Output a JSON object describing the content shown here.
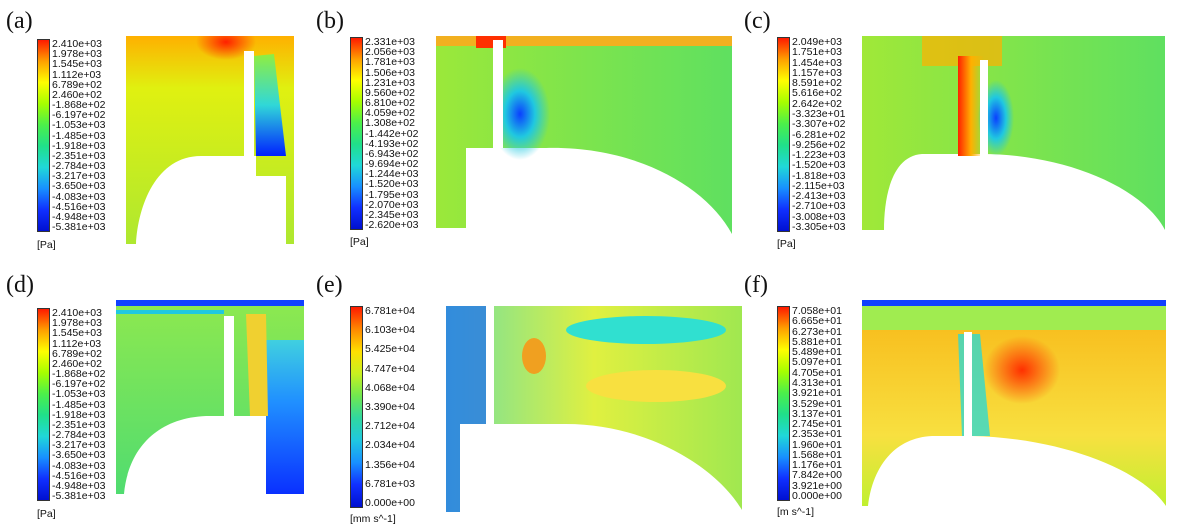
{
  "panels": [
    {
      "label": "(a)",
      "unit": "[Pa]",
      "ticks": [
        "2.410e+03",
        "1.978e+03",
        "1.545e+03",
        "1.112e+03",
        "6.789e+02",
        "2.460e+02",
        "-1.868e+02",
        "-6.197e+02",
        "-1.053e+03",
        "-1.485e+03",
        "-1.918e+03",
        "-2.351e+03",
        "-2.784e+03",
        "-3.217e+03",
        "-3.650e+03",
        "-4.083e+03",
        "-4.516e+03",
        "-4.948e+03",
        "-5.381e+03"
      ]
    },
    {
      "label": "(b)",
      "unit": "[Pa]",
      "ticks": [
        "2.331e+03",
        "2.056e+03",
        "1.781e+03",
        "1.506e+03",
        "1.231e+03",
        "9.560e+02",
        "6.810e+02",
        "4.059e+02",
        "1.308e+02",
        "-1.442e+02",
        "-4.193e+02",
        "-6.943e+02",
        "-9.694e+02",
        "-1.244e+03",
        "-1.520e+03",
        "-1.795e+03",
        "-2.070e+03",
        "-2.345e+03",
        "-2.620e+03"
      ]
    },
    {
      "label": "(c)",
      "unit": "[Pa]",
      "ticks": [
        "2.049e+03",
        "1.751e+03",
        "1.454e+03",
        "1.157e+03",
        "8.591e+02",
        "5.616e+02",
        "2.642e+02",
        "-3.323e+01",
        "-3.307e+02",
        "-6.281e+02",
        "-9.256e+02",
        "-1.223e+03",
        "-1.520e+03",
        "-1.818e+03",
        "-2.115e+03",
        "-2.413e+03",
        "-2.710e+03",
        "-3.008e+03",
        "-3.305e+03"
      ]
    },
    {
      "label": "(d)",
      "unit": "[Pa]",
      "ticks": [
        "2.410e+03",
        "1.978e+03",
        "1.545e+03",
        "1.112e+03",
        "6.789e+02",
        "2.460e+02",
        "-1.868e+02",
        "-6.197e+02",
        "-1.053e+03",
        "-1.485e+03",
        "-1.918e+03",
        "-2.351e+03",
        "-2.784e+03",
        "-3.217e+03",
        "-3.650e+03",
        "-4.083e+03",
        "-4.516e+03",
        "-4.948e+03",
        "-5.381e+03"
      ]
    },
    {
      "label": "(e)",
      "unit": "[mm s^-1]",
      "ticks": [
        "6.781e+04",
        "6.103e+04",
        "5.425e+04",
        "4.747e+04",
        "4.068e+04",
        "3.390e+04",
        "2.712e+04",
        "2.034e+04",
        "1.356e+04",
        "6.781e+03",
        "0.000e+00"
      ]
    },
    {
      "label": "(f)",
      "unit": "[m s^-1]",
      "ticks": [
        "7.058e+01",
        "6.665e+01",
        "6.273e+01",
        "5.881e+01",
        "5.489e+01",
        "5.097e+01",
        "4.705e+01",
        "4.313e+01",
        "3.921e+01",
        "3.529e+01",
        "3.137e+01",
        "2.745e+01",
        "2.353e+01",
        "1.960e+01",
        "1.568e+01",
        "1.176e+01",
        "7.842e+00",
        "3.921e+00",
        "0.000e+00"
      ]
    }
  ],
  "colors": {
    "scale": [
      "#0000ff",
      "#0066ff",
      "#00ccff",
      "#00ffcc",
      "#33ff66",
      "#99ff33",
      "#ccff00",
      "#ffff00",
      "#ff9900",
      "#ff0000"
    ],
    "high": "#ff2a00",
    "low": "#0018ff",
    "mid": "#66e84a"
  }
}
